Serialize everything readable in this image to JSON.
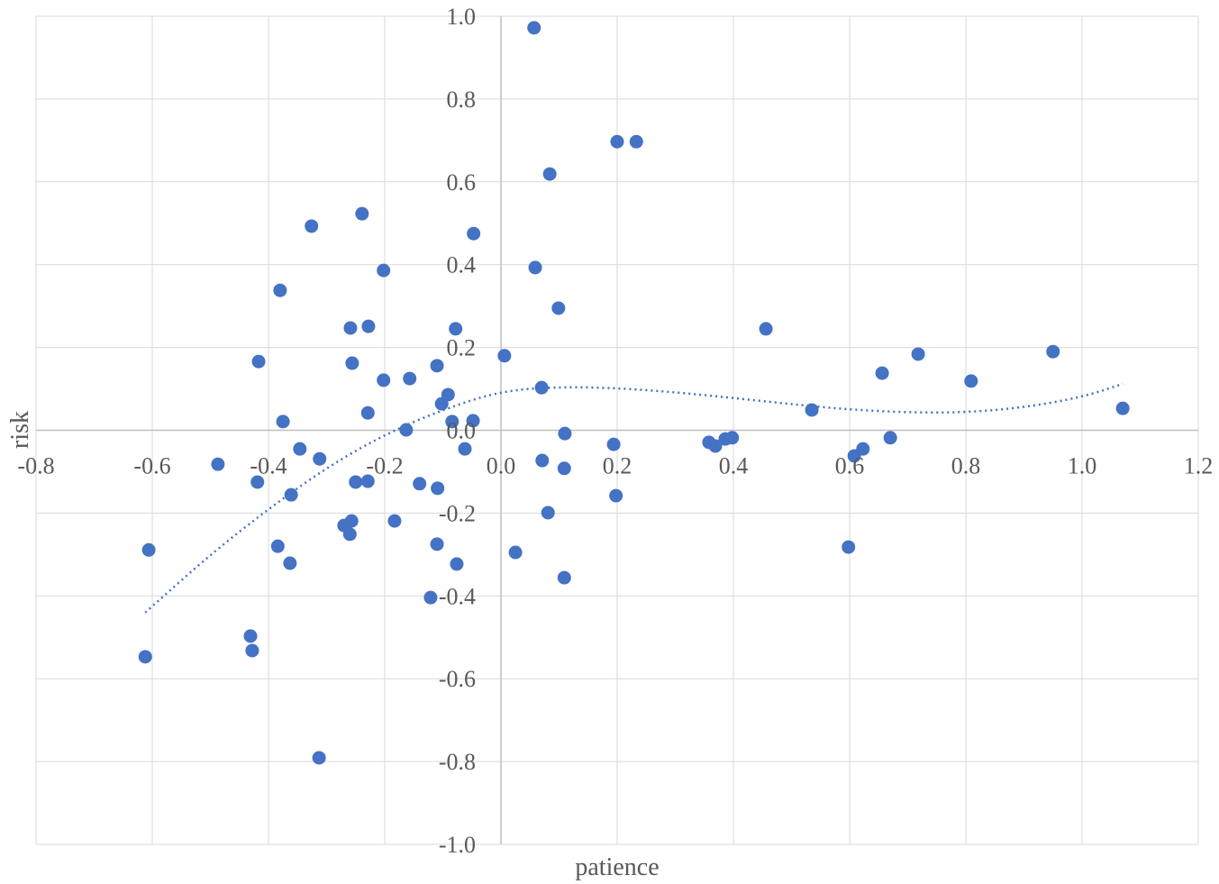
{
  "chart_data": {
    "type": "scatter",
    "title": "",
    "xlabel": "patience",
    "ylabel": "risk",
    "xlim": [
      -0.8,
      1.2
    ],
    "ylim": [
      -1.0,
      1.0
    ],
    "grid": true,
    "legend": "none",
    "xticks": [
      "-0.8",
      "-0.6",
      "-0.4",
      "-0.2",
      "0.0",
      "0.2",
      "0.4",
      "0.6",
      "0.8",
      "1.0",
      "1.2"
    ],
    "yticks": [
      "-1.0",
      "-0.8",
      "-0.6",
      "-0.4",
      "-0.2",
      "0.0",
      "0.2",
      "0.4",
      "0.6",
      "0.8",
      "1.0"
    ],
    "colors": {
      "points": "#4472c4",
      "trendline": "#4472c4",
      "grid": "#d9d9d9",
      "axis": "#bfbfbf"
    },
    "series": [
      {
        "name": "risk",
        "points": [
          [
            0.057,
            0.972
          ],
          [
            0.2,
            0.697
          ],
          [
            0.233,
            0.697
          ],
          [
            0.084,
            0.619
          ],
          [
            -0.239,
            0.523
          ],
          [
            -0.326,
            0.493
          ],
          [
            -0.047,
            0.475
          ],
          [
            0.059,
            0.393
          ],
          [
            -0.202,
            0.386
          ],
          [
            -0.38,
            0.338
          ],
          [
            0.099,
            0.295
          ],
          [
            -0.259,
            0.247
          ],
          [
            -0.228,
            0.251
          ],
          [
            -0.078,
            0.245
          ],
          [
            0.456,
            0.245
          ],
          [
            0.006,
            0.18
          ],
          [
            0.95,
            0.19
          ],
          [
            0.718,
            0.184
          ],
          [
            -0.417,
            0.166
          ],
          [
            -0.256,
            0.162
          ],
          [
            -0.11,
            0.156
          ],
          [
            0.656,
            0.138
          ],
          [
            -0.202,
            0.121
          ],
          [
            -0.157,
            0.125
          ],
          [
            0.809,
            0.119
          ],
          [
            0.07,
            0.103
          ],
          [
            -0.091,
            0.086
          ],
          [
            -0.102,
            0.064
          ],
          [
            -0.229,
            0.042
          ],
          [
            0.535,
            0.049
          ],
          [
            1.07,
            0.053
          ],
          [
            -0.375,
            0.021
          ],
          [
            -0.084,
            0.021
          ],
          [
            -0.048,
            0.023
          ],
          [
            -0.163,
            0.001
          ],
          [
            0.11,
            -0.008
          ],
          [
            0.358,
            -0.029
          ],
          [
            0.369,
            -0.038
          ],
          [
            0.386,
            -0.021
          ],
          [
            0.398,
            -0.018
          ],
          [
            0.67,
            -0.018
          ],
          [
            0.194,
            -0.034
          ],
          [
            -0.346,
            -0.045
          ],
          [
            -0.062,
            -0.045
          ],
          [
            0.623,
            -0.045
          ],
          [
            0.608,
            -0.062
          ],
          [
            -0.487,
            -0.082
          ],
          [
            -0.312,
            -0.069
          ],
          [
            0.071,
            -0.073
          ],
          [
            0.109,
            -0.092
          ],
          [
            -0.419,
            -0.125
          ],
          [
            -0.25,
            -0.125
          ],
          [
            -0.229,
            -0.123
          ],
          [
            -0.14,
            -0.129
          ],
          [
            -0.109,
            -0.14
          ],
          [
            -0.361,
            -0.156
          ],
          [
            0.198,
            -0.158
          ],
          [
            0.081,
            -0.199
          ],
          [
            -0.183,
            -0.219
          ],
          [
            -0.257,
            -0.219
          ],
          [
            -0.27,
            -0.23
          ],
          [
            -0.26,
            -0.251
          ],
          [
            -0.606,
            -0.289
          ],
          [
            -0.384,
            -0.28
          ],
          [
            -0.11,
            -0.275
          ],
          [
            0.598,
            -0.282
          ],
          [
            0.025,
            -0.295
          ],
          [
            -0.363,
            -0.321
          ],
          [
            -0.076,
            -0.323
          ],
          [
            0.109,
            -0.356
          ],
          [
            -0.121,
            -0.404
          ],
          [
            -0.431,
            -0.497
          ],
          [
            -0.428,
            -0.532
          ],
          [
            -0.612,
            -0.547
          ],
          [
            -0.313,
            -0.791
          ]
        ]
      }
    ],
    "trendline": {
      "type": "polynomial",
      "points": [
        [
          -0.612,
          -0.44
        ],
        [
          -0.5,
          -0.3
        ],
        [
          -0.4,
          -0.19
        ],
        [
          -0.3,
          -0.09
        ],
        [
          -0.2,
          -0.01
        ],
        [
          -0.1,
          0.05
        ],
        [
          0.0,
          0.095
        ],
        [
          0.1,
          0.105
        ],
        [
          0.2,
          0.102
        ],
        [
          0.3,
          0.092
        ],
        [
          0.4,
          0.078
        ],
        [
          0.5,
          0.063
        ],
        [
          0.6,
          0.05
        ],
        [
          0.7,
          0.043
        ],
        [
          0.8,
          0.043
        ],
        [
          0.9,
          0.055
        ],
        [
          1.0,
          0.08
        ],
        [
          1.07,
          0.112
        ]
      ]
    }
  }
}
